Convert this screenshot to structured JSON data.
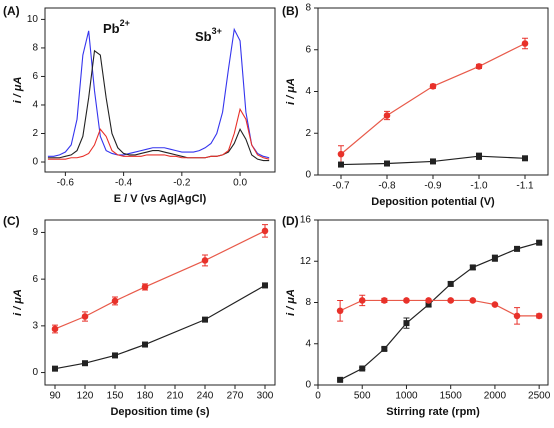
{
  "chart_data": [
    {
      "type": "line",
      "panel_label": "(A)",
      "x_label": "E / V (vs Ag|AgCl)",
      "y_label": "i / μA",
      "annotations": [
        {
          "text": "Pb",
          "superscript": "2+"
        },
        {
          "text": "Sb",
          "superscript": "3+"
        }
      ],
      "x": [
        -0.66,
        -0.64,
        -0.62,
        -0.6,
        -0.58,
        -0.56,
        -0.54,
        -0.52,
        -0.5,
        -0.48,
        -0.46,
        -0.44,
        -0.42,
        -0.4,
        -0.38,
        -0.36,
        -0.34,
        -0.32,
        -0.3,
        -0.28,
        -0.26,
        -0.24,
        -0.22,
        -0.2,
        -0.18,
        -0.16,
        -0.14,
        -0.12,
        -0.1,
        -0.08,
        -0.06,
        -0.04,
        -0.02,
        0.0,
        0.02,
        0.04,
        0.06,
        0.08,
        0.1
      ],
      "series": [
        {
          "color": "#3535ee",
          "values": [
            0.4,
            0.4,
            0.5,
            0.7,
            1.2,
            3.0,
            7.5,
            9.2,
            5.0,
            1.8,
            0.8,
            0.6,
            0.5,
            0.5,
            0.6,
            0.7,
            0.8,
            0.9,
            1.0,
            1.0,
            1.0,
            0.9,
            0.8,
            0.7,
            0.7,
            0.7,
            0.8,
            1.0,
            1.3,
            2.0,
            3.5,
            6.5,
            9.3,
            8.5,
            3.5,
            1.2,
            0.6,
            0.4,
            0.3
          ]
        },
        {
          "color": "#222222",
          "values": [
            0.3,
            0.3,
            0.3,
            0.4,
            0.5,
            0.8,
            1.8,
            4.5,
            7.8,
            7.5,
            4.5,
            2.0,
            1.0,
            0.6,
            0.5,
            0.5,
            0.6,
            0.7,
            0.8,
            0.8,
            0.7,
            0.6,
            0.5,
            0.4,
            0.3,
            0.3,
            0.3,
            0.3,
            0.4,
            0.4,
            0.5,
            0.7,
            1.3,
            2.3,
            1.6,
            0.5,
            0.2,
            0.1,
            0.1
          ]
        },
        {
          "color": "#e8312a",
          "values": [
            0.2,
            0.2,
            0.2,
            0.2,
            0.3,
            0.3,
            0.4,
            0.6,
            1.2,
            2.3,
            1.8,
            0.8,
            0.5,
            0.4,
            0.4,
            0.4,
            0.4,
            0.5,
            0.5,
            0.5,
            0.5,
            0.4,
            0.4,
            0.3,
            0.3,
            0.3,
            0.3,
            0.3,
            0.4,
            0.4,
            0.5,
            0.8,
            2.0,
            3.7,
            3.0,
            1.2,
            0.5,
            0.3,
            0.2
          ]
        }
      ],
      "xlim": [
        -0.67,
        0.12
      ],
      "xticks": [
        -0.6,
        -0.4,
        -0.2,
        {
          "value": 0,
          "label": "0.0"
        }
      ],
      "ylim": [
        -0.7,
        10.8
      ],
      "yticks": [
        0,
        2,
        4,
        6,
        8,
        10
      ]
    },
    {
      "type": "line",
      "panel_label": "(B)",
      "x_label": "Deposition potential (V)",
      "y_label": "i / μA",
      "x": [
        -0.7,
        -0.8,
        -0.9,
        -1.0,
        -1.1
      ],
      "series": [
        {
          "color": "#e8312a",
          "marker": "circle",
          "values": [
            1.0,
            2.85,
            4.25,
            5.2,
            6.3
          ],
          "errors": [
            0.4,
            0.2,
            0.1,
            0.1,
            0.25
          ]
        },
        {
          "color": "#222222",
          "marker": "square",
          "values": [
            0.5,
            0.55,
            0.65,
            0.9,
            0.8
          ],
          "errors": [
            0.1,
            0.05,
            0.05,
            0.15,
            0.1
          ]
        }
      ],
      "xlim": [
        -0.65,
        -1.15
      ],
      "xticks": [
        -0.7,
        -0.8,
        -0.9,
        {
          "value": -1.0,
          "label": "-1.0"
        },
        -1.1
      ],
      "ylim": [
        0,
        8
      ],
      "yticks": [
        0,
        2,
        4,
        6,
        8
      ]
    },
    {
      "type": "line",
      "panel_label": "(C)",
      "x_label": "Deposition time (s)",
      "y_label": "i / μA",
      "x": [
        90,
        120,
        150,
        180,
        240,
        300
      ],
      "series": [
        {
          "color": "#e8312a",
          "marker": "circle",
          "values": [
            2.8,
            3.6,
            4.6,
            5.5,
            7.2,
            9.1
          ],
          "errors": [
            0.25,
            0.3,
            0.25,
            0.2,
            0.35,
            0.4
          ]
        },
        {
          "color": "#222222",
          "marker": "square",
          "values": [
            0.25,
            0.6,
            1.1,
            1.8,
            3.4,
            5.6
          ],
          "errors": [
            0.05,
            0.05,
            0.05,
            0.05,
            0.1,
            0.15
          ]
        }
      ],
      "xlim": [
        80,
        310
      ],
      "xticks": [
        90,
        120,
        150,
        180,
        210,
        240,
        270,
        300
      ],
      "ylim": [
        -0.8,
        9.8
      ],
      "yticks": [
        0,
        3,
        6,
        9
      ]
    },
    {
      "type": "line",
      "panel_label": "(D)",
      "x_label": "Stirring rate (rpm)",
      "y_label": "i / μA",
      "x": [
        250,
        500,
        750,
        1000,
        1250,
        1500,
        1750,
        2000,
        2250,
        2500
      ],
      "series": [
        {
          "color": "#222222",
          "marker": "square",
          "values": [
            0.5,
            1.6,
            3.5,
            6.0,
            7.8,
            9.8,
            11.4,
            12.3,
            13.2,
            13.8
          ],
          "errors": [
            0.1,
            0.1,
            0.15,
            0.5,
            0.2,
            0.2,
            0.2,
            0.3,
            0.2,
            0.15
          ]
        },
        {
          "color": "#e8312a",
          "marker": "circle",
          "values": [
            7.2,
            8.2,
            8.2,
            8.2,
            8.2,
            8.2,
            8.2,
            7.8,
            6.7,
            6.7
          ],
          "errors": [
            1.0,
            0.5,
            0.2,
            0.1,
            0.1,
            0.1,
            0.1,
            0.1,
            0.8,
            0.2
          ]
        }
      ],
      "xlim": [
        0,
        2600
      ],
      "xticks": [
        0,
        500,
        1000,
        1500,
        2000,
        2500
      ],
      "ylim": [
        0,
        16
      ],
      "yticks": [
        0,
        4,
        8,
        12,
        16
      ]
    }
  ]
}
